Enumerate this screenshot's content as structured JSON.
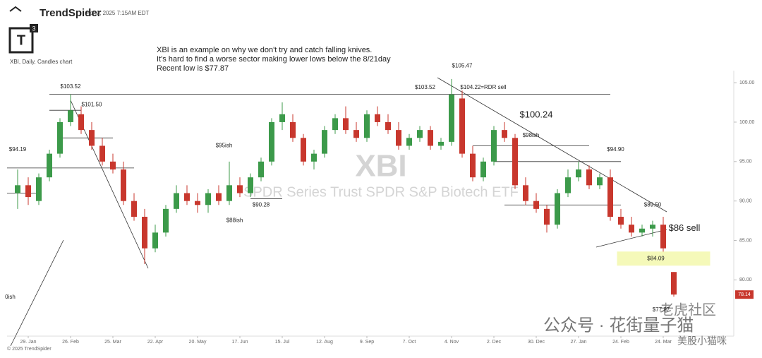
{
  "header": {
    "brand": "TrendSpider",
    "timestamp": "Apr 2, 2025 7:15AM EDT",
    "logo": "T",
    "logo_sup": "3",
    "chart_label": "XBI, Daily, Candles chart",
    "note": [
      "XBI is an example on why we don't try and catch falling knives.",
      "It's hard to find a worse sector making lower lows below the 8/21day",
      "Recent low is $77.87"
    ],
    "watermark": "XBI",
    "watermark_sub": "SPDR Series Trust SPDR S&P Biotech ETF",
    "footer": "© 2025 TrendSpider",
    "overlay": [
      "公众号 · 花街量子猫",
      "老虎社区",
      "美股小猫咪"
    ]
  },
  "chart_data": {
    "type": "candlestick",
    "x": [
      -1,
      0,
      1,
      2,
      3,
      4,
      5,
      6,
      7,
      8,
      9,
      10,
      11,
      12,
      13,
      14,
      15,
      16,
      17,
      18,
      19,
      20,
      21,
      22,
      23,
      24,
      25,
      26,
      27,
      28,
      29,
      30,
      31,
      32,
      33,
      34,
      35,
      36,
      37,
      38,
      39,
      40,
      41,
      42,
      43,
      44,
      45,
      46,
      47,
      48,
      49,
      50,
      51,
      52,
      53,
      54,
      55,
      56,
      57,
      58,
      59,
      60,
      61
    ],
    "open": [
      91,
      92,
      90,
      93,
      96,
      100,
      101,
      99,
      97,
      95,
      94,
      90,
      88,
      84,
      86,
      89,
      91,
      90,
      89.5,
      91,
      90,
      92,
      91,
      93,
      95,
      100,
      100,
      98,
      95,
      96,
      99,
      100.5,
      99,
      98,
      101,
      100,
      99,
      97,
      98,
      99,
      97,
      97.5,
      103,
      96,
      93,
      95,
      99,
      98,
      92,
      90,
      89,
      87,
      91,
      93,
      94,
      92,
      93,
      88,
      87,
      86,
      86.5,
      87,
      81
    ],
    "high": [
      94,
      93,
      93.5,
      96.5,
      100.5,
      103.52,
      102,
      100,
      98,
      96,
      95,
      91,
      89,
      87,
      89.5,
      92,
      92,
      91,
      91.5,
      92,
      95,
      93,
      93.5,
      95.5,
      100.5,
      102.5,
      101,
      98.5,
      96.5,
      99.5,
      101,
      102,
      100,
      101.5,
      102,
      101,
      100,
      98.5,
      99.5,
      99.5,
      98,
      105.47,
      104,
      97,
      95.5,
      99.5,
      100,
      98.5,
      93,
      91,
      89.5,
      91.5,
      94,
      95,
      94.5,
      93.5,
      94,
      89,
      88,
      87,
      87.5,
      88,
      81
    ],
    "low": [
      89,
      89.5,
      89.5,
      92.5,
      95.5,
      99.5,
      98.5,
      96.5,
      94.5,
      93.5,
      89.5,
      87.5,
      82,
      83.5,
      85.5,
      88.5,
      89.5,
      88.5,
      88.5,
      89.5,
      89.5,
      90.5,
      90.5,
      92.5,
      94.5,
      99,
      97.5,
      94.5,
      94,
      95.5,
      98.5,
      98.5,
      97.5,
      97.5,
      99.5,
      98.5,
      96.5,
      96.5,
      97.5,
      96.5,
      96.5,
      97,
      95.5,
      92.5,
      92.5,
      94.5,
      97.5,
      91.5,
      89.5,
      88.5,
      86,
      86.5,
      90.5,
      92.5,
      91.5,
      91.5,
      87.5,
      86.5,
      85.5,
      85.5,
      85.5,
      83.5,
      77.87
    ],
    "close": [
      92,
      90.5,
      93,
      96,
      100,
      101.5,
      99,
      97,
      95,
      94,
      90,
      88,
      84,
      86,
      89,
      91,
      90,
      89.5,
      91,
      90,
      92,
      91,
      93,
      95,
      100,
      101,
      98,
      95,
      96,
      99,
      100.5,
      99,
      98,
      101,
      100,
      99,
      97,
      98,
      99,
      97,
      97.5,
      103.5,
      96,
      93,
      95,
      99,
      98,
      92,
      90,
      89,
      87,
      91,
      93,
      94,
      92,
      93,
      88,
      87,
      86,
      86.5,
      87,
      84,
      78.14
    ],
    "up_color": "#3c9a4a",
    "down_color": "#c8372d",
    "xlim": [
      -2,
      64
    ],
    "xticks": [
      {
        "value": 0,
        "label": "29. Jan"
      },
      {
        "value": 4,
        "label": "26. Feb"
      },
      {
        "value": 8,
        "label": "25. Mar"
      },
      {
        "value": 12,
        "label": "22. Apr"
      },
      {
        "value": 16,
        "label": "20. May"
      },
      {
        "value": 20,
        "label": "17. Jun"
      },
      {
        "value": 24,
        "label": "15. Jul"
      },
      {
        "value": 28,
        "label": "12. Aug"
      },
      {
        "value": 32,
        "label": "9. Sep"
      },
      {
        "value": 36,
        "label": "7. Oct"
      },
      {
        "value": 40,
        "label": "4. Nov"
      },
      {
        "value": 44,
        "label": "2. Dec"
      },
      {
        "value": 48,
        "label": "30. Dec"
      },
      {
        "value": 52,
        "label": "27. Jan"
      },
      {
        "value": 56,
        "label": "24. Feb"
      },
      {
        "value": 60,
        "label": "24. Mar"
      }
    ],
    "ylim": [
      73.5,
      108.5
    ],
    "yticks": [
      {
        "value": 80,
        "label": "80.00"
      },
      {
        "value": 85,
        "label": "85.00"
      },
      {
        "value": 90,
        "label": "90.00"
      },
      {
        "value": 95,
        "label": "95.00"
      },
      {
        "value": 100,
        "label": "100.00"
      },
      {
        "value": 105,
        "label": "105.00"
      }
    ],
    "last_price": {
      "value": 78.14,
      "label": "78.14"
    },
    "levels": [
      {
        "y": 103.52,
        "from": 2,
        "to": 55
      },
      {
        "y": 101.5,
        "from": 2,
        "to": 5
      },
      {
        "y": 98,
        "from": 3,
        "to": 8
      },
      {
        "y": 94.19,
        "from": -2,
        "to": 10
      },
      {
        "y": 91,
        "from": -2,
        "to": 1
      },
      {
        "y": 90.28,
        "from": 21,
        "to": 24
      },
      {
        "y": 97,
        "from": 42,
        "to": 53
      },
      {
        "y": 95,
        "from": 44,
        "to": 56
      },
      {
        "y": 89.5,
        "from": 45,
        "to": 56
      }
    ],
    "annotations": [
      {
        "text": "$103.52",
        "x": 4,
        "y": 104.5
      },
      {
        "text": "$101.50",
        "x": 6,
        "y": 102.2
      },
      {
        "text": "$94.19",
        "x": -1,
        "y": 96.5
      },
      {
        "text": "$95ish",
        "x": 18.5,
        "y": 97
      },
      {
        "text": "$90.28",
        "x": 22,
        "y": 89.5
      },
      {
        "text": "$88ish",
        "x": 19.5,
        "y": 87.5
      },
      {
        "text": "$103.52",
        "x": 37.5,
        "y": 104.4
      },
      {
        "text": "$104.22=RDR sell",
        "x": 43,
        "y": 104.4
      },
      {
        "text": "$105.47",
        "x": 41,
        "y": 107.1
      },
      {
        "text": "$100.24",
        "x": 48,
        "y": 100.9,
        "big": true
      },
      {
        "text": "$98ish",
        "x": 47.5,
        "y": 98.3
      },
      {
        "text": "$94.90",
        "x": 55.5,
        "y": 96.5
      },
      {
        "text": "$89.50",
        "x": 59,
        "y": 89.5
      },
      {
        "text": "$86 sell",
        "x": 62,
        "y": 86.5,
        "big": true
      },
      {
        "text": "$84.09",
        "x": 59.3,
        "y": 82.7,
        "box": true
      },
      {
        "text": "$77.87",
        "x": 59.8,
        "y": 76.2
      },
      {
        "text": "0ish",
        "x": -1.7,
        "y": 77.8
      }
    ]
  }
}
